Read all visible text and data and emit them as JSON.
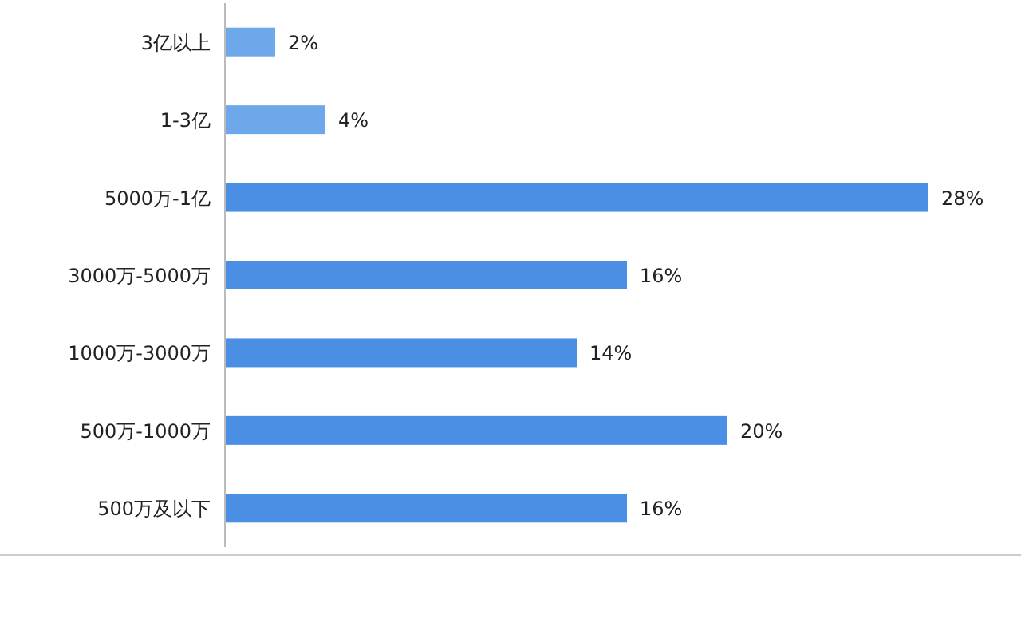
{
  "chart_data": {
    "type": "bar",
    "orientation": "horizontal",
    "categories": [
      "3亿以上",
      "1-3亿",
      "5000万-1亿",
      "3000万-5000万",
      "1000万-3000万",
      "500万-1000万",
      "500万及以下"
    ],
    "values": [
      2,
      4,
      28,
      16,
      14,
      20,
      16
    ],
    "value_labels": [
      "2%",
      "4%",
      "28%",
      "16%",
      "14%",
      "20%",
      "16%"
    ],
    "colors": [
      "#6ea8ea",
      "#6ea8ea",
      "#4a8fe3",
      "#4a8fe3",
      "#4a8fe3",
      "#4a8fe3",
      "#4a8fe3"
    ]
  }
}
